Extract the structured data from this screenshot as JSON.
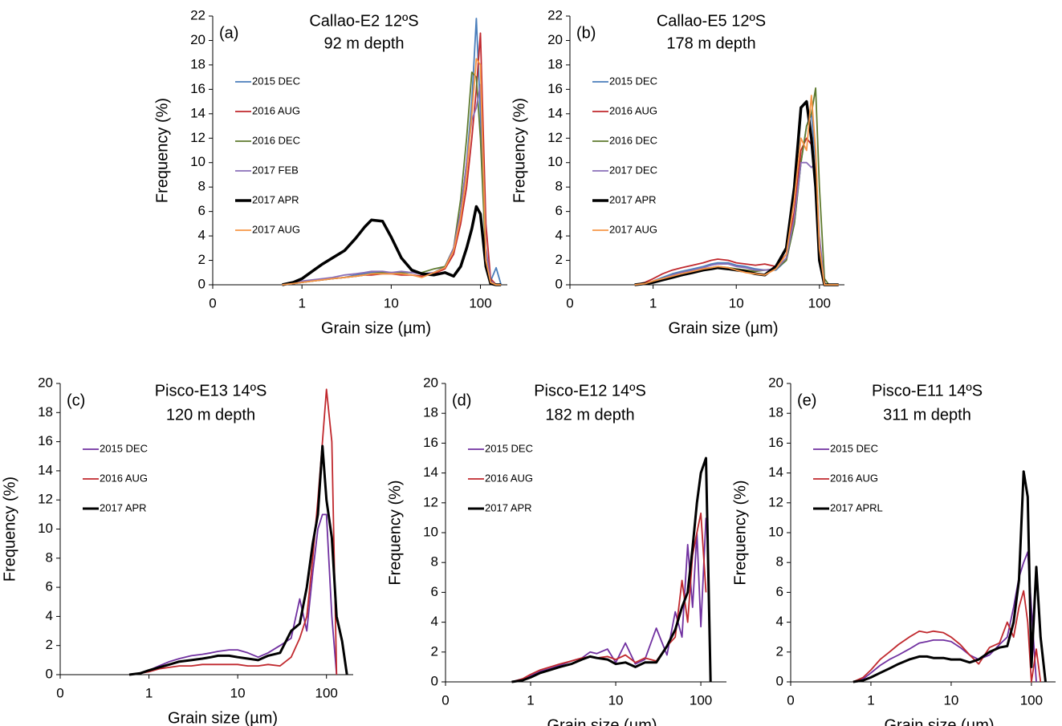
{
  "chart_data": [
    {
      "type": "line",
      "label": "(a)",
      "title": "Callao-E2 12ºS",
      "subtitle": "92 m depth",
      "x_label": "Grain size (µm)",
      "y_label": "Frequency (%)",
      "x_scale": "log",
      "x": [
        0.6,
        0.8,
        1,
        1.3,
        1.7,
        2.2,
        3,
        4,
        5,
        6,
        8,
        10,
        13,
        17,
        22,
        30,
        40,
        50,
        60,
        70,
        80,
        90,
        100,
        115,
        130,
        150,
        170
      ],
      "xlim": [
        0.1,
        200
      ],
      "xticks": [
        {
          "value": 0.1,
          "label": "0"
        },
        1,
        10,
        100
      ],
      "ylim": [
        0,
        22
      ],
      "yticks": [
        0,
        2,
        4,
        6,
        8,
        10,
        12,
        14,
        16,
        18,
        20,
        22
      ],
      "series": [
        {
          "name": "2015 DEC",
          "color": "#4a7ebb",
          "values": [
            0,
            0.1,
            0.2,
            0.3,
            0.4,
            0.5,
            0.6,
            0.8,
            0.9,
            1,
            1,
            1,
            0.9,
            0.8,
            0.7,
            1,
            1.5,
            3,
            6,
            10,
            15,
            21.8,
            14,
            2,
            0.3,
            1.4,
            0
          ]
        },
        {
          "name": "2016 AUG",
          "color": "#c0282d",
          "values": [
            0,
            0.1,
            0.2,
            0.3,
            0.4,
            0.5,
            0.6,
            0.7,
            0.8,
            0.8,
            0.9,
            0.9,
            0.8,
            0.8,
            0.7,
            0.9,
            1.3,
            2.5,
            5,
            8,
            12,
            16,
            20.6,
            5,
            0.5,
            0,
            0
          ]
        },
        {
          "name": "2016 DEC",
          "color": "#5e7a2e",
          "values": [
            0,
            0.1,
            0.2,
            0.3,
            0.4,
            0.5,
            0.6,
            0.7,
            0.8,
            0.9,
            1,
            1,
            1,
            1,
            1,
            1.3,
            1.5,
            3,
            7,
            12,
            17.4,
            17,
            12,
            2,
            0.3,
            0,
            0
          ]
        },
        {
          "name": "2017 FEB",
          "color": "#8a6fb8",
          "values": [
            0,
            0.1,
            0.3,
            0.4,
            0.5,
            0.6,
            0.8,
            0.9,
            1,
            1.1,
            1.1,
            1,
            1.1,
            1,
            0.9,
            1,
            1.4,
            3,
            6,
            10,
            13.5,
            14.5,
            16.4,
            3,
            0.3,
            0,
            0
          ]
        },
        {
          "name": "2017 APR",
          "color": "#000000",
          "values": [
            0,
            0.2,
            0.5,
            1.1,
            1.7,
            2.2,
            2.8,
            3.8,
            4.7,
            5.3,
            5.2,
            3.9,
            2.2,
            1.2,
            0.9,
            0.8,
            1,
            0.7,
            1.5,
            3,
            4.6,
            6.4,
            5.8,
            1.5,
            0.1,
            0,
            0
          ]
        },
        {
          "name": "2017 AUG",
          "color": "#f79646",
          "values": [
            0,
            0.1,
            0.2,
            0.3,
            0.4,
            0.5,
            0.6,
            0.7,
            0.8,
            0.9,
            0.9,
            0.9,
            0.9,
            0.8,
            0.6,
            1,
            1.4,
            2.8,
            5.5,
            9,
            14,
            18.5,
            18,
            2,
            0.2,
            0,
            0
          ]
        }
      ]
    },
    {
      "type": "line",
      "label": "(b)",
      "title": "Callao-E5 12ºS",
      "subtitle": "178 m depth",
      "x_label": "Grain size (µm)",
      "y_label": "Frequency (%)",
      "x_scale": "log",
      "x": [
        0.6,
        0.8,
        1,
        1.3,
        1.7,
        2.2,
        3,
        4,
        5,
        6,
        8,
        10,
        13,
        17,
        22,
        30,
        40,
        50,
        60,
        70,
        80,
        90,
        100,
        115,
        130,
        150,
        170
      ],
      "xlim": [
        0.1,
        200
      ],
      "xticks": [
        {
          "value": 0.1,
          "label": "0"
        },
        1,
        10,
        100
      ],
      "ylim": [
        0,
        22
      ],
      "yticks": [
        0,
        2,
        4,
        6,
        8,
        10,
        12,
        14,
        16,
        18,
        20,
        22
      ],
      "series": [
        {
          "name": "2015 DEC",
          "color": "#4a7ebb",
          "values": [
            0,
            0.1,
            0.3,
            0.6,
            0.9,
            1.1,
            1.3,
            1.5,
            1.7,
            1.8,
            1.8,
            1.6,
            1.5,
            1.3,
            1.2,
            1.2,
            2,
            5,
            10,
            13,
            14,
            10,
            3,
            0,
            0,
            0,
            0
          ]
        },
        {
          "name": "2016 AUG",
          "color": "#c0282d",
          "values": [
            0,
            0.2,
            0.5,
            0.9,
            1.2,
            1.4,
            1.6,
            1.8,
            2,
            2.1,
            2,
            1.8,
            1.7,
            1.6,
            1.7,
            1.5,
            2.5,
            6,
            11,
            12,
            11.5,
            9,
            2,
            0,
            0,
            0,
            0
          ]
        },
        {
          "name": "2016 DEC",
          "color": "#5e7a2e",
          "values": [
            0,
            0.1,
            0.3,
            0.5,
            0.8,
            1,
            1.2,
            1.3,
            1.4,
            1.5,
            1.4,
            1.3,
            1.2,
            1.1,
            1.2,
            1.3,
            2,
            5,
            10,
            13,
            14,
            16.1,
            8,
            0.5,
            0,
            0,
            0
          ]
        },
        {
          "name": "2017 DEC",
          "color": "#8a6fb8",
          "values": [
            0,
            0.1,
            0.3,
            0.5,
            0.8,
            1,
            1.2,
            1.4,
            1.6,
            1.7,
            1.7,
            1.5,
            1.4,
            1.2,
            1.2,
            1.3,
            2.2,
            5.5,
            10,
            10,
            9.6,
            10,
            4,
            0,
            0,
            0,
            0
          ]
        },
        {
          "name": "2017 APR",
          "color": "#000000",
          "values": [
            0,
            0.1,
            0.2,
            0.4,
            0.6,
            0.8,
            1,
            1.2,
            1.3,
            1.4,
            1.3,
            1.2,
            1.1,
            0.9,
            0.8,
            1.5,
            3,
            8,
            14.5,
            15,
            12,
            8,
            2,
            0,
            0,
            0,
            0
          ]
        },
        {
          "name": "2017 AUG",
          "color": "#f79646",
          "values": [
            0,
            0.1,
            0.3,
            0.5,
            0.7,
            0.9,
            1.1,
            1.3,
            1.4,
            1.5,
            1.4,
            1.2,
            1,
            0.9,
            0.8,
            1.3,
            2.5,
            7,
            12,
            11,
            15.5,
            11,
            3,
            0,
            0,
            0,
            0
          ]
        }
      ]
    },
    {
      "type": "line",
      "label": "(c)",
      "title": "Pisco-E13 14ºS",
      "subtitle": "120 m depth",
      "x_label": "Grain size (µm)",
      "y_label": "Frequency (%)",
      "x_scale": "log",
      "x": [
        0.6,
        0.8,
        1,
        1.3,
        1.7,
        2.2,
        3,
        4,
        5,
        6,
        8,
        10,
        13,
        17,
        22,
        30,
        40,
        50,
        60,
        70,
        80,
        90,
        100,
        115,
        130,
        150,
        170
      ],
      "xlim": [
        0.1,
        200
      ],
      "xticks": [
        {
          "value": 0.1,
          "label": "0"
        },
        1,
        10,
        100
      ],
      "ylim": [
        0,
        20
      ],
      "yticks": [
        0,
        2,
        4,
        6,
        8,
        10,
        12,
        14,
        16,
        18,
        20
      ],
      "series": [
        {
          "name": "2015 DEC",
          "color": "#7030a0",
          "values": [
            0,
            0.1,
            0.3,
            0.6,
            0.9,
            1.1,
            1.3,
            1.4,
            1.5,
            1.6,
            1.7,
            1.7,
            1.5,
            1.2,
            1.5,
            2,
            2.5,
            5.2,
            3,
            7,
            10,
            11,
            11,
            4,
            0,
            null,
            null
          ]
        },
        {
          "name": "2016 AUG",
          "color": "#c0282d",
          "values": [
            0,
            0.1,
            0.2,
            0.4,
            0.5,
            0.6,
            0.6,
            0.7,
            0.7,
            0.7,
            0.7,
            0.7,
            0.6,
            0.6,
            0.7,
            0.6,
            1.2,
            2.5,
            4,
            8,
            12,
            16,
            19.6,
            16,
            0,
            null,
            null
          ]
        },
        {
          "name": "2017 APR",
          "color": "#000000",
          "values": [
            0,
            0.1,
            0.3,
            0.5,
            0.7,
            0.9,
            1,
            1.1,
            1.2,
            1.3,
            1.3,
            1.2,
            1.1,
            1,
            1.3,
            1.5,
            3,
            3.5,
            6,
            9,
            11,
            15.7,
            12,
            9.4,
            4,
            2.3,
            0
          ]
        }
      ]
    },
    {
      "type": "line",
      "label": "(d)",
      "title": "Pisco-E12 14ºS",
      "subtitle": "182 m depth",
      "x_label": "Grain size (µm)",
      "y_label": "Frequency (%)",
      "x_scale": "log",
      "x": [
        0.6,
        0.8,
        1,
        1.3,
        1.7,
        2.2,
        3,
        4,
        5,
        6,
        8,
        10,
        13,
        17,
        22,
        30,
        40,
        50,
        60,
        70,
        80,
        90,
        100,
        115,
        130,
        150,
        170
      ],
      "xlim": [
        0.1,
        200
      ],
      "xticks": [
        {
          "value": 0.1,
          "label": "0"
        },
        1,
        10,
        100
      ],
      "ylim": [
        0,
        20
      ],
      "yticks": [
        0,
        2,
        4,
        6,
        8,
        10,
        12,
        14,
        16,
        18,
        20
      ],
      "series": [
        {
          "name": "2015 DEC",
          "color": "#7030a0",
          "values": [
            0,
            0.2,
            0.4,
            0.7,
            0.9,
            1.1,
            1.4,
            1.6,
            2,
            1.9,
            2.2,
            1.3,
            2.6,
            1.2,
            1.5,
            3.6,
            1.8,
            4.7,
            3,
            9.2,
            5,
            10,
            3.7,
            11,
            null,
            null,
            null
          ]
        },
        {
          "name": "2016 AUG",
          "color": "#c0282d",
          "values": [
            0,
            0.2,
            0.5,
            0.8,
            1,
            1.2,
            1.4,
            1.6,
            1.7,
            1.6,
            1.7,
            1.5,
            1.8,
            1.3,
            1.6,
            1.4,
            2.4,
            3,
            6.8,
            4,
            8.5,
            10,
            11.3,
            6,
            null,
            null,
            null
          ]
        },
        {
          "name": "2017 APR",
          "color": "#000000",
          "values": [
            0,
            0.1,
            0.3,
            0.6,
            0.8,
            1,
            1.2,
            1.5,
            1.7,
            1.6,
            1.5,
            1.2,
            1.3,
            1,
            1.3,
            1.3,
            2.4,
            3.5,
            5,
            6,
            9,
            12,
            14,
            15,
            0,
            null,
            null
          ]
        }
      ]
    },
    {
      "type": "line",
      "label": "(e)",
      "title": "Pisco-E11 14ºS",
      "subtitle": "311 m depth",
      "x_label": "Grain size (µm)",
      "y_label": "Frequency (%)",
      "x_scale": "log",
      "x": [
        0.6,
        0.8,
        1,
        1.3,
        1.7,
        2.2,
        3,
        4,
        5,
        6,
        8,
        10,
        13,
        17,
        22,
        30,
        40,
        50,
        60,
        70,
        80,
        90,
        100,
        115,
        130,
        150,
        170
      ],
      "xlim": [
        0.1,
        200
      ],
      "xticks": [
        {
          "value": 0.1,
          "label": "0"
        },
        1,
        10,
        100
      ],
      "ylim": [
        0,
        20
      ],
      "yticks": [
        0,
        2,
        4,
        6,
        8,
        10,
        12,
        14,
        16,
        18,
        20
      ],
      "series": [
        {
          "name": "2015 DEC",
          "color": "#7030a0",
          "values": [
            0,
            0.2,
            0.6,
            1.1,
            1.5,
            1.8,
            2.2,
            2.6,
            2.7,
            2.8,
            2.8,
            2.7,
            2.3,
            1.8,
            1.5,
            1.8,
            2.5,
            3,
            5,
            7,
            8,
            8.7,
            5,
            0,
            null,
            null,
            null
          ]
        },
        {
          "name": "2016 AUG",
          "color": "#c0282d",
          "values": [
            0,
            0.3,
            0.8,
            1.5,
            2,
            2.5,
            3,
            3.4,
            3.3,
            3.4,
            3.3,
            3,
            2.5,
            1.8,
            1.2,
            2.3,
            2.6,
            4,
            3,
            5,
            6.1,
            4,
            0,
            2.2,
            0,
            null,
            null
          ]
        },
        {
          "name": "2017 APRL",
          "color": "#000000",
          "values": [
            0,
            0.1,
            0.3,
            0.6,
            0.9,
            1.2,
            1.5,
            1.7,
            1.7,
            1.6,
            1.6,
            1.5,
            1.5,
            1.3,
            1.5,
            2,
            2.3,
            2.4,
            4,
            6.8,
            14.1,
            12.4,
            1,
            7.7,
            3,
            0,
            null
          ]
        }
      ]
    }
  ]
}
